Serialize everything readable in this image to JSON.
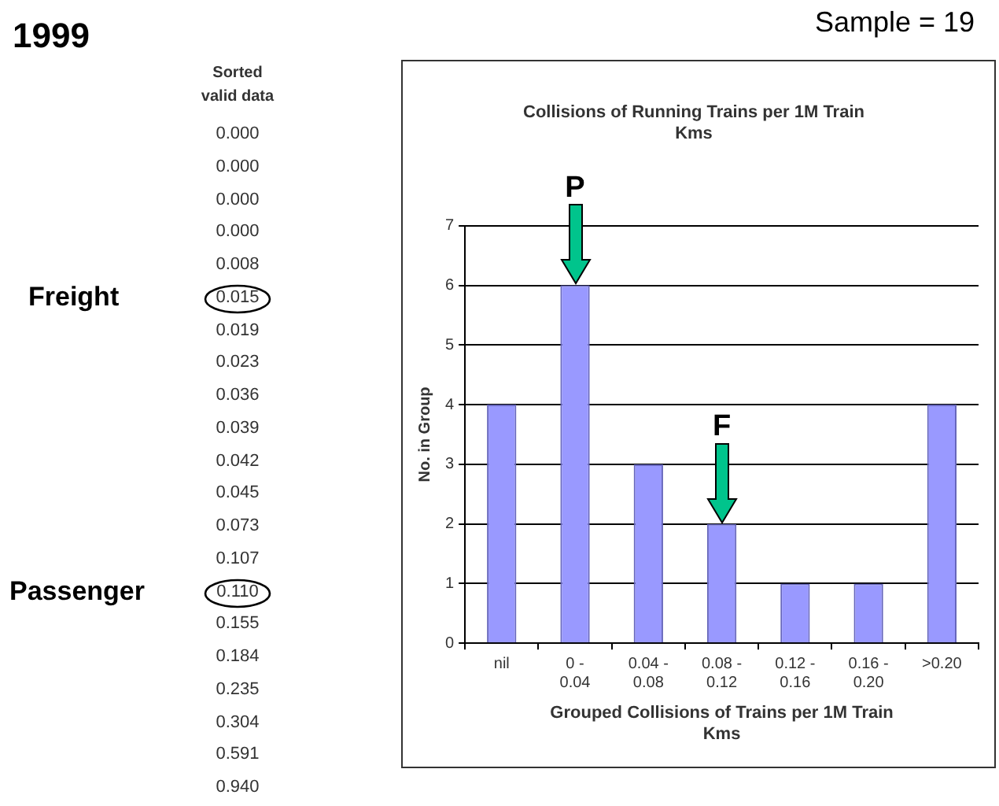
{
  "chart_data": {
    "type": "bar",
    "title": "Collisions of Running Trains per 1M Train Kms",
    "xlabel": "Grouped Collisions of Trains per 1M Train Kms",
    "ylabel": "No. in Group",
    "categories": [
      "nil",
      "0 - 0.04",
      "0.04 - 0.08",
      "0.08 - 0.12",
      "0.12 - 0.16",
      "0.16 - 0.20",
      ">0.20"
    ],
    "values": [
      4,
      6,
      3,
      2,
      1,
      1,
      4
    ],
    "color": "#9999ff",
    "ylim": [
      0,
      7
    ],
    "yticks": [
      0,
      1,
      2,
      3,
      4,
      5,
      6,
      7
    ],
    "grid": "y",
    "legend": false,
    "annotations": [
      "1999",
      "Sample = 19",
      "Sorted valid data",
      "0.000",
      "0.000",
      "0.000",
      "0.000",
      "0.008",
      "0.015",
      "0.019",
      "0.023",
      "0.036",
      "0.039",
      "0.042",
      "0.045",
      "0.073",
      "0.107",
      "0.110",
      "0.155",
      "0.184",
      "0.235",
      "0.304",
      "0.591",
      "0.940",
      "Freight",
      "Passenger",
      {
        "text": "P",
        "x": "0 - 0.04",
        "y": 6
      },
      {
        "text": "F",
        "x": "0.08 - 0.12",
        "y": 2
      }
    ]
  }
}
